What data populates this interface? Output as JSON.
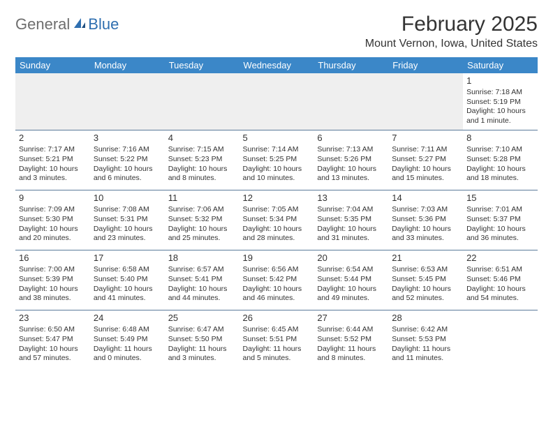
{
  "logo": {
    "text1": "General",
    "text2": "Blue"
  },
  "title": "February 2025",
  "location": "Mount Vernon, Iowa, United States",
  "colors": {
    "header_bg": "#3b87c8",
    "header_text": "#ffffff",
    "row_divider": "#5a7a9a",
    "logo_gray": "#6e6e6e",
    "logo_blue": "#2f6fb0",
    "empty_bg": "#efefef"
  },
  "day_headers": [
    "Sunday",
    "Monday",
    "Tuesday",
    "Wednesday",
    "Thursday",
    "Friday",
    "Saturday"
  ],
  "weeks": [
    [
      null,
      null,
      null,
      null,
      null,
      null,
      {
        "n": "1",
        "sunrise": "Sunrise: 7:18 AM",
        "sunset": "Sunset: 5:19 PM",
        "daylight": "Daylight: 10 hours and 1 minute."
      }
    ],
    [
      {
        "n": "2",
        "sunrise": "Sunrise: 7:17 AM",
        "sunset": "Sunset: 5:21 PM",
        "daylight": "Daylight: 10 hours and 3 minutes."
      },
      {
        "n": "3",
        "sunrise": "Sunrise: 7:16 AM",
        "sunset": "Sunset: 5:22 PM",
        "daylight": "Daylight: 10 hours and 6 minutes."
      },
      {
        "n": "4",
        "sunrise": "Sunrise: 7:15 AM",
        "sunset": "Sunset: 5:23 PM",
        "daylight": "Daylight: 10 hours and 8 minutes."
      },
      {
        "n": "5",
        "sunrise": "Sunrise: 7:14 AM",
        "sunset": "Sunset: 5:25 PM",
        "daylight": "Daylight: 10 hours and 10 minutes."
      },
      {
        "n": "6",
        "sunrise": "Sunrise: 7:13 AM",
        "sunset": "Sunset: 5:26 PM",
        "daylight": "Daylight: 10 hours and 13 minutes."
      },
      {
        "n": "7",
        "sunrise": "Sunrise: 7:11 AM",
        "sunset": "Sunset: 5:27 PM",
        "daylight": "Daylight: 10 hours and 15 minutes."
      },
      {
        "n": "8",
        "sunrise": "Sunrise: 7:10 AM",
        "sunset": "Sunset: 5:28 PM",
        "daylight": "Daylight: 10 hours and 18 minutes."
      }
    ],
    [
      {
        "n": "9",
        "sunrise": "Sunrise: 7:09 AM",
        "sunset": "Sunset: 5:30 PM",
        "daylight": "Daylight: 10 hours and 20 minutes."
      },
      {
        "n": "10",
        "sunrise": "Sunrise: 7:08 AM",
        "sunset": "Sunset: 5:31 PM",
        "daylight": "Daylight: 10 hours and 23 minutes."
      },
      {
        "n": "11",
        "sunrise": "Sunrise: 7:06 AM",
        "sunset": "Sunset: 5:32 PM",
        "daylight": "Daylight: 10 hours and 25 minutes."
      },
      {
        "n": "12",
        "sunrise": "Sunrise: 7:05 AM",
        "sunset": "Sunset: 5:34 PM",
        "daylight": "Daylight: 10 hours and 28 minutes."
      },
      {
        "n": "13",
        "sunrise": "Sunrise: 7:04 AM",
        "sunset": "Sunset: 5:35 PM",
        "daylight": "Daylight: 10 hours and 31 minutes."
      },
      {
        "n": "14",
        "sunrise": "Sunrise: 7:03 AM",
        "sunset": "Sunset: 5:36 PM",
        "daylight": "Daylight: 10 hours and 33 minutes."
      },
      {
        "n": "15",
        "sunrise": "Sunrise: 7:01 AM",
        "sunset": "Sunset: 5:37 PM",
        "daylight": "Daylight: 10 hours and 36 minutes."
      }
    ],
    [
      {
        "n": "16",
        "sunrise": "Sunrise: 7:00 AM",
        "sunset": "Sunset: 5:39 PM",
        "daylight": "Daylight: 10 hours and 38 minutes."
      },
      {
        "n": "17",
        "sunrise": "Sunrise: 6:58 AM",
        "sunset": "Sunset: 5:40 PM",
        "daylight": "Daylight: 10 hours and 41 minutes."
      },
      {
        "n": "18",
        "sunrise": "Sunrise: 6:57 AM",
        "sunset": "Sunset: 5:41 PM",
        "daylight": "Daylight: 10 hours and 44 minutes."
      },
      {
        "n": "19",
        "sunrise": "Sunrise: 6:56 AM",
        "sunset": "Sunset: 5:42 PM",
        "daylight": "Daylight: 10 hours and 46 minutes."
      },
      {
        "n": "20",
        "sunrise": "Sunrise: 6:54 AM",
        "sunset": "Sunset: 5:44 PM",
        "daylight": "Daylight: 10 hours and 49 minutes."
      },
      {
        "n": "21",
        "sunrise": "Sunrise: 6:53 AM",
        "sunset": "Sunset: 5:45 PM",
        "daylight": "Daylight: 10 hours and 52 minutes."
      },
      {
        "n": "22",
        "sunrise": "Sunrise: 6:51 AM",
        "sunset": "Sunset: 5:46 PM",
        "daylight": "Daylight: 10 hours and 54 minutes."
      }
    ],
    [
      {
        "n": "23",
        "sunrise": "Sunrise: 6:50 AM",
        "sunset": "Sunset: 5:47 PM",
        "daylight": "Daylight: 10 hours and 57 minutes."
      },
      {
        "n": "24",
        "sunrise": "Sunrise: 6:48 AM",
        "sunset": "Sunset: 5:49 PM",
        "daylight": "Daylight: 11 hours and 0 minutes."
      },
      {
        "n": "25",
        "sunrise": "Sunrise: 6:47 AM",
        "sunset": "Sunset: 5:50 PM",
        "daylight": "Daylight: 11 hours and 3 minutes."
      },
      {
        "n": "26",
        "sunrise": "Sunrise: 6:45 AM",
        "sunset": "Sunset: 5:51 PM",
        "daylight": "Daylight: 11 hours and 5 minutes."
      },
      {
        "n": "27",
        "sunrise": "Sunrise: 6:44 AM",
        "sunset": "Sunset: 5:52 PM",
        "daylight": "Daylight: 11 hours and 8 minutes."
      },
      {
        "n": "28",
        "sunrise": "Sunrise: 6:42 AM",
        "sunset": "Sunset: 5:53 PM",
        "daylight": "Daylight: 11 hours and 11 minutes."
      },
      null
    ]
  ]
}
